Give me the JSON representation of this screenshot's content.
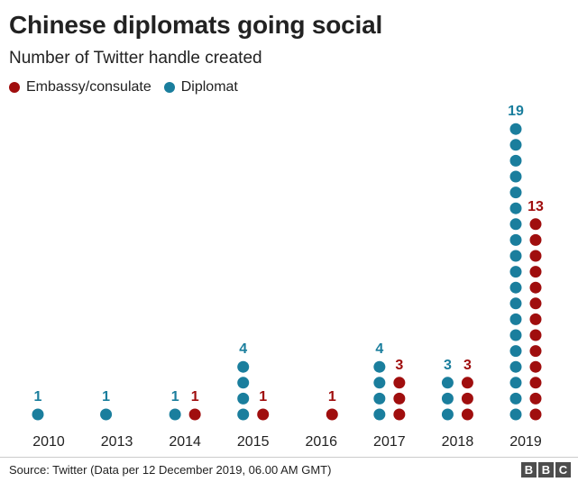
{
  "header": {
    "title": "Chinese diplomats going social",
    "subtitle": "Number of Twitter handle created"
  },
  "legend": [
    {
      "label": "Embassy/consulate",
      "color": "#a00e0e"
    },
    {
      "label": "Diplomat",
      "color": "#1a7e9d"
    }
  ],
  "footer": {
    "source": "Source: Twitter (Data per 12 December 2019, 06.00 AM GMT)",
    "logo_letters": [
      "B",
      "B",
      "C"
    ]
  },
  "chart_data": {
    "type": "dot-stack",
    "title": "Chinese diplomats going social",
    "subtitle": "Number of Twitter handle created",
    "categories": [
      "2010",
      "2013",
      "2014",
      "2015",
      "2016",
      "2017",
      "2018",
      "2019"
    ],
    "series": [
      {
        "name": "Diplomat",
        "color": "#1a7e9d",
        "values": [
          1,
          1,
          1,
          4,
          0,
          4,
          3,
          19
        ]
      },
      {
        "name": "Embassy/consulate",
        "color": "#a00e0e",
        "values": [
          0,
          0,
          1,
          1,
          1,
          3,
          3,
          13
        ]
      }
    ],
    "legend_position": "top-left",
    "grid": false
  }
}
